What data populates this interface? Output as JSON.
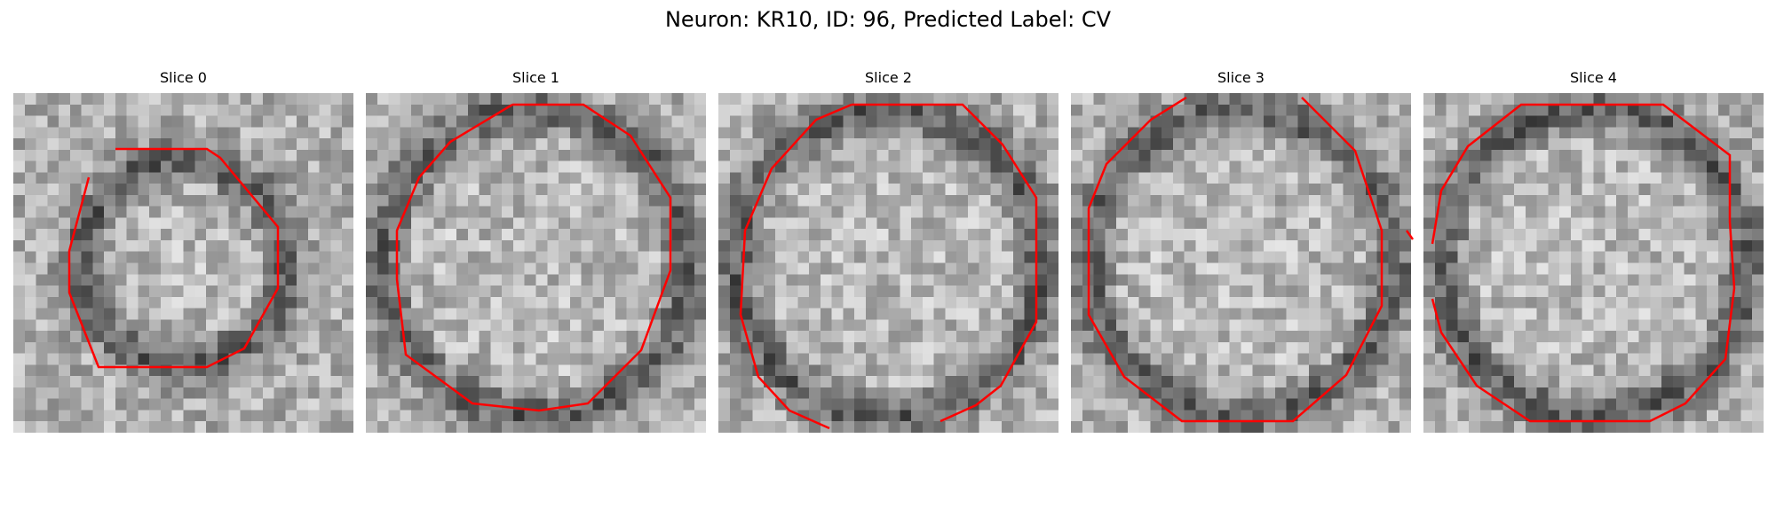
{
  "figure": {
    "title": "Neuron: KR10, ID: 96, Predicted Label: CV"
  },
  "contour_color": "#ff0000",
  "panels": [
    {
      "title": "Slice 0"
    },
    {
      "title": "Slice 1"
    },
    {
      "title": "Slice 2"
    },
    {
      "title": "Slice 3"
    },
    {
      "title": "Slice 4"
    }
  ]
}
